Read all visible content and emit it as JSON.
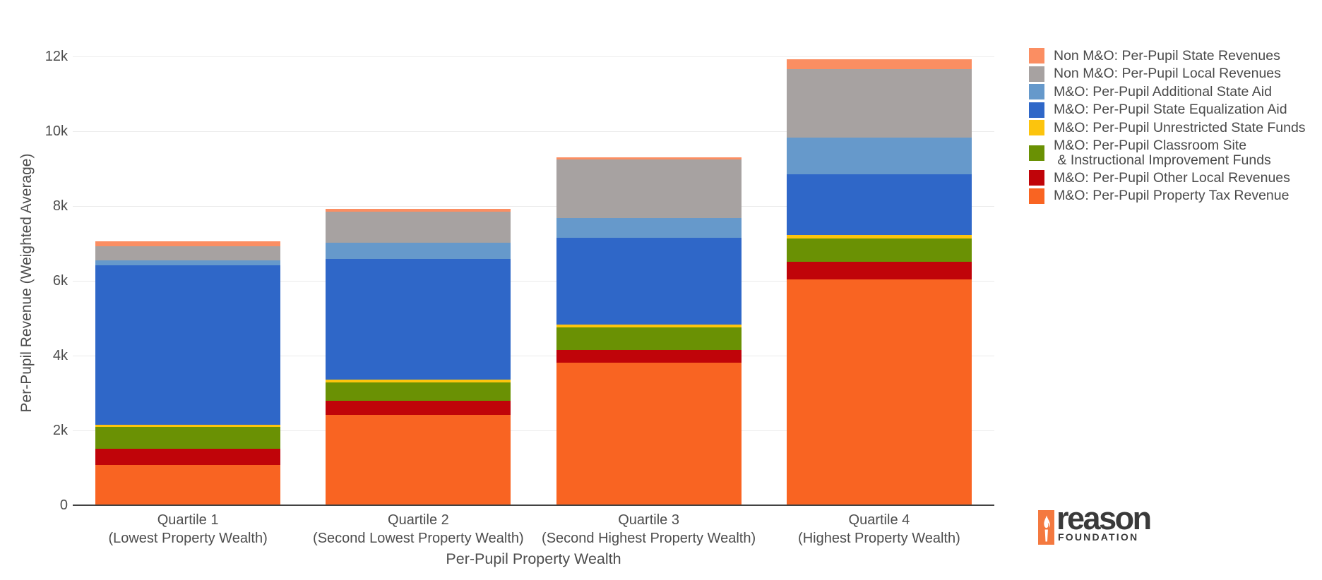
{
  "chart_data": {
    "type": "bar",
    "stacked": true,
    "title": "",
    "xlabel": "Per-Pupil Property Wealth",
    "ylabel": "Per-Pupil Revenue (Weighted Average)",
    "legend_position": "right",
    "grid": true,
    "ylim": [
      0,
      12000
    ],
    "yticks": [
      {
        "value": 0,
        "label": "0"
      },
      {
        "value": 2000,
        "label": "2k"
      },
      {
        "value": 4000,
        "label": "4k"
      },
      {
        "value": 6000,
        "label": "6k"
      },
      {
        "value": 8000,
        "label": "8k"
      },
      {
        "value": 10000,
        "label": "10k"
      },
      {
        "value": 12000,
        "label": "12k"
      }
    ],
    "categories": [
      "Quartile 1\n(Lowest Property Wealth)",
      "Quartile 2\n(Second Lowest Property Wealth)",
      "Quartile 3\n(Second Highest Property Wealth)",
      "Quartile 4\n(Highest Property Wealth)"
    ],
    "series": [
      {
        "name": "Non M&O: Per-Pupil State Revenues",
        "color": "#FB8E62",
        "values": [
          130,
          80,
          70,
          270
        ]
      },
      {
        "name": "Non M&O: Per-Pupil Local Revenues",
        "color": "#A7A2A1",
        "values": [
          380,
          840,
          1560,
          1830
        ]
      },
      {
        "name": "M&O: Per-Pupil Additional State Aid",
        "color": "#6699CB",
        "values": [
          140,
          420,
          530,
          990
        ]
      },
      {
        "name": "M&O: Per-Pupil State Equalization Aid",
        "color": "#2F67C8",
        "values": [
          4250,
          3240,
          2320,
          1620
        ]
      },
      {
        "name": "M&O: Per-Pupil Unrestricted State Funds",
        "color": "#FCC40D",
        "values": [
          60,
          70,
          80,
          80
        ]
      },
      {
        "name": "M&O: Per-Pupil Classroom Site\n & Instructional Improvement Funds",
        "color": "#6A9104",
        "values": [
          590,
          480,
          590,
          630
        ]
      },
      {
        "name": "M&O: Per-Pupil Other Local Revenues",
        "color": "#C00409",
        "values": [
          430,
          390,
          350,
          470
        ]
      },
      {
        "name": "M&O: Per-Pupil Property Tax Revenue",
        "color": "#F96422",
        "values": [
          1080,
          2410,
          3810,
          6040
        ]
      }
    ],
    "bar_totals": [
      7060,
      7930,
      9310,
      11930
    ]
  },
  "logo": {
    "brand": "reason",
    "sub": "FOUNDATION",
    "orange": "#F4793F",
    "text_color": "#3A3A3A"
  }
}
